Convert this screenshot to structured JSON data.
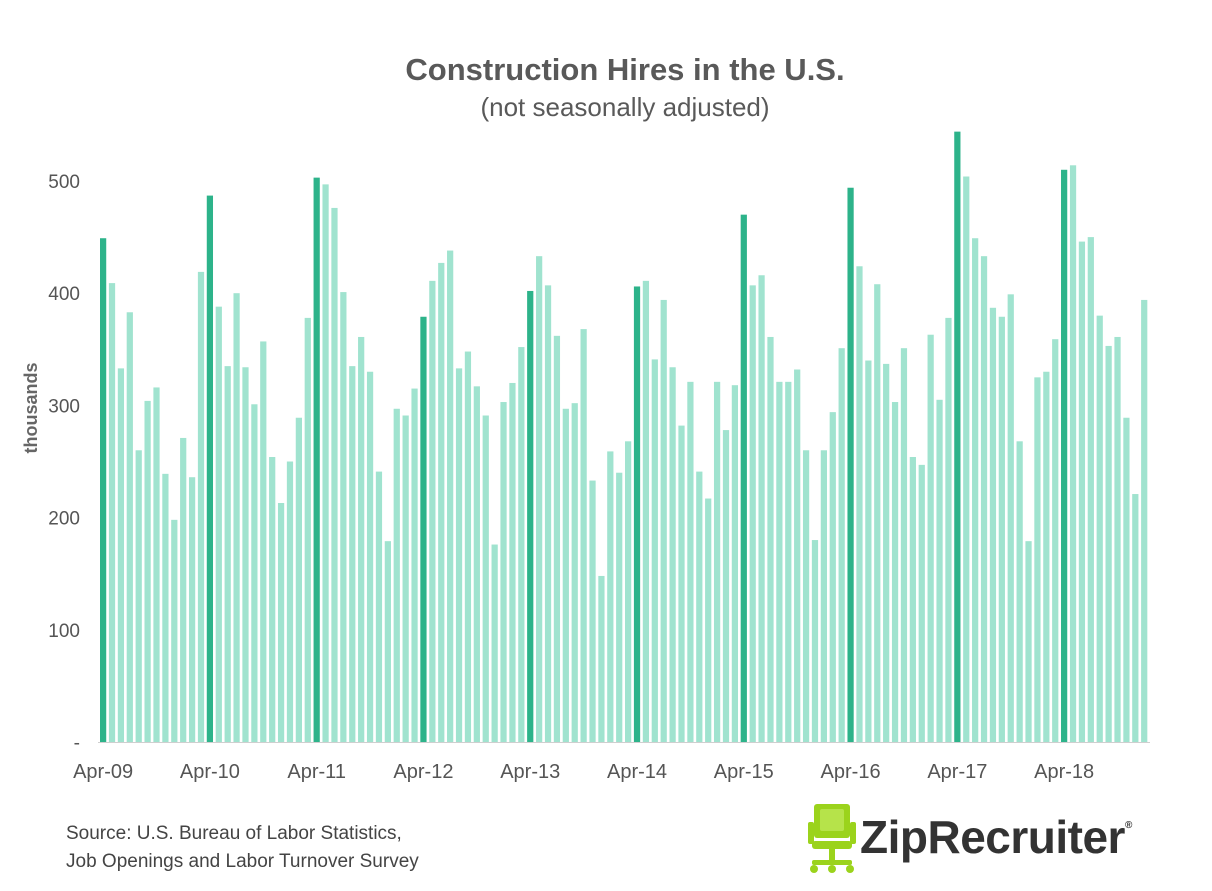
{
  "chart_data": {
    "type": "bar",
    "title": "Construction Hires in the U.S.",
    "subtitle": "(not seasonally adjusted)",
    "ylabel": "thousands",
    "ylim": [
      0,
      550
    ],
    "yticks": [
      {
        "value": 0,
        "label": "-"
      },
      {
        "value": 100,
        "label": "100"
      },
      {
        "value": 200,
        "label": "200"
      },
      {
        "value": 300,
        "label": "300"
      },
      {
        "value": 400,
        "label": "400"
      },
      {
        "value": 500,
        "label": "500"
      }
    ],
    "x_tick_labels": [
      "Apr-09",
      "Apr-10",
      "Apr-11",
      "Apr-12",
      "Apr-13",
      "Apr-14",
      "Apr-15",
      "Apr-16",
      "Apr-17",
      "Apr-18"
    ],
    "highlight_color": "#2db38a",
    "base_color": "#a0e3cf",
    "series": [
      {
        "values": [
          449,
          409,
          333,
          383,
          260,
          304,
          316,
          239,
          198,
          271,
          236,
          419,
          487,
          388,
          335,
          400,
          334,
          301,
          357,
          254,
          213,
          250,
          289,
          378,
          503,
          497,
          476,
          401,
          335,
          361,
          330,
          241,
          179,
          297,
          291,
          315,
          379,
          411,
          427,
          438,
          333,
          348,
          317,
          291,
          176,
          303,
          320,
          352,
          402,
          433,
          407,
          362,
          297,
          302,
          368,
          233,
          148,
          259,
          240,
          268,
          406,
          411,
          341,
          394,
          334,
          282,
          321,
          241,
          217,
          321,
          278,
          318,
          470,
          407,
          416,
          361,
          321,
          321,
          332,
          260,
          180,
          260,
          294,
          351,
          494,
          424,
          340,
          408,
          337,
          303,
          351,
          254,
          247,
          363,
          305,
          378,
          544,
          504,
          449,
          433,
          387,
          379,
          399,
          268,
          179,
          325,
          330,
          359,
          510,
          514,
          446,
          450,
          380,
          353,
          361,
          289,
          221,
          394
        ]
      }
    ]
  },
  "source": {
    "line1": "Source: U.S. Bureau of Labor Statistics,",
    "line2": "Job Openings and Labor Turnover Survey"
  },
  "logo": {
    "text": "ZipRecruiter",
    "reg": "®",
    "icon": "office-chair-icon",
    "icon_color": "#9bd31c"
  }
}
